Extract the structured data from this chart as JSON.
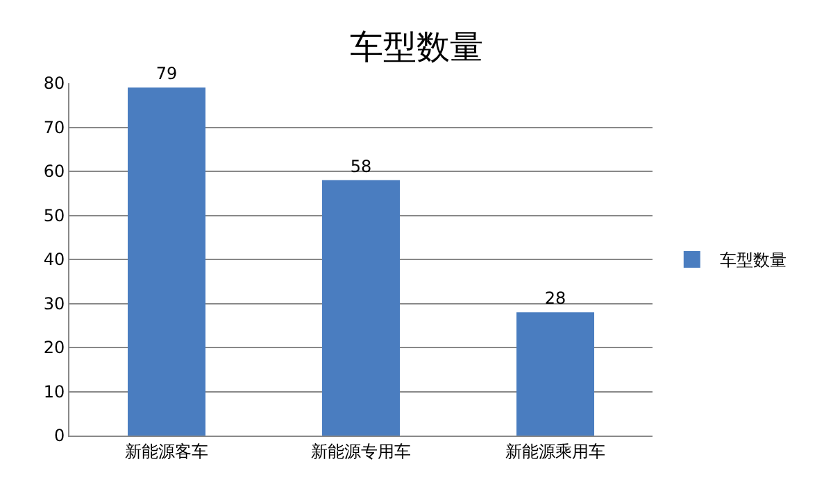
{
  "chart_data": {
    "type": "bar",
    "title": "车型数量",
    "categories": [
      "新能源客车",
      "新能源专用车",
      "新能源乘用车"
    ],
    "series": [
      {
        "name": "车型数量",
        "color": "#4a7dc0",
        "values": [
          79,
          58,
          28
        ]
      }
    ],
    "ylim": [
      0,
      80
    ],
    "yticks": [
      0,
      10,
      20,
      30,
      40,
      50,
      60,
      70,
      80
    ],
    "grid": "y",
    "legend": "right",
    "data_labels": true
  }
}
